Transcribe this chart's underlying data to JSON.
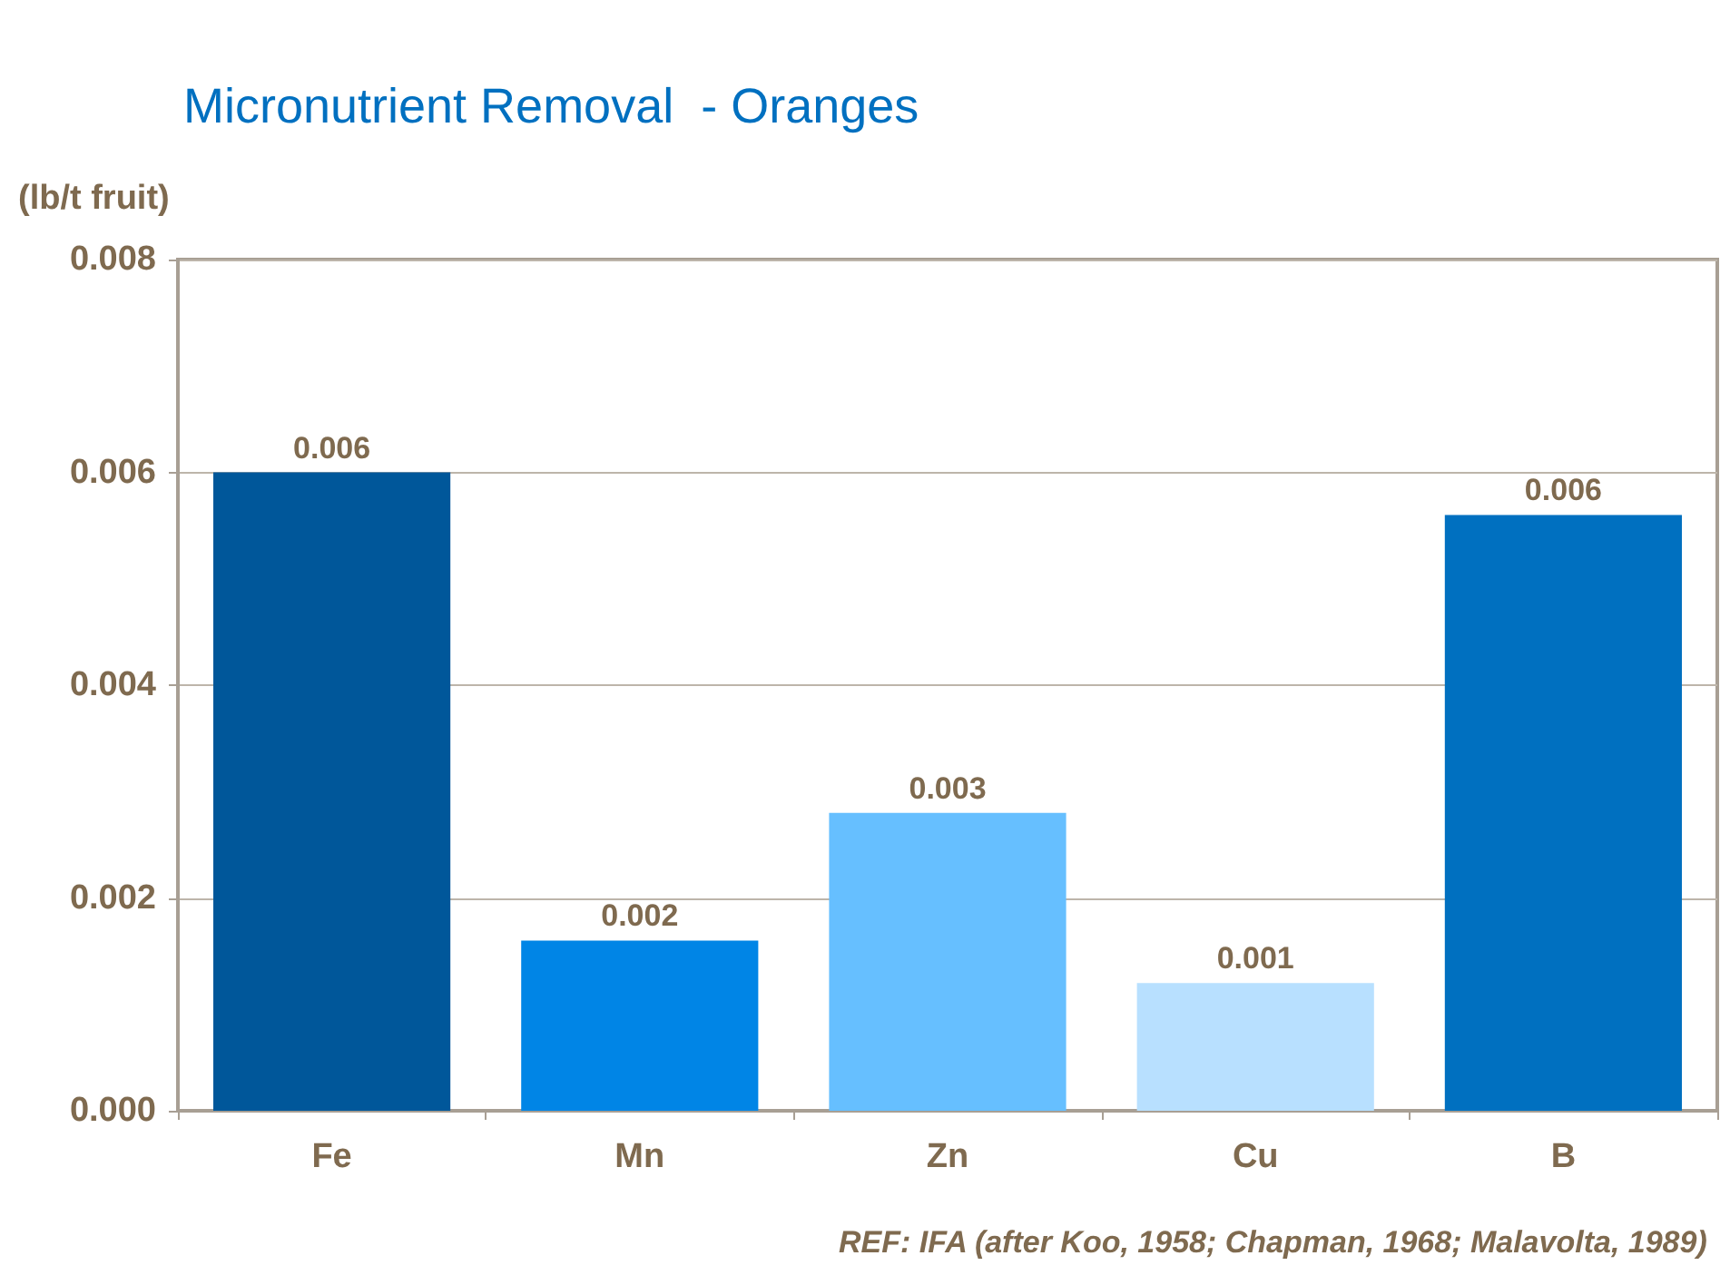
{
  "chart_data": {
    "type": "bar",
    "title": "Micronutrient Removal  - Oranges",
    "ylabel": "(lb/t fruit)",
    "categories": [
      "Fe",
      "Mn",
      "Zn",
      "Cu",
      "B"
    ],
    "values": [
      0.006,
      0.0016,
      0.0028,
      0.0012,
      0.0056
    ],
    "colors": [
      "#00579a",
      "#0085e6",
      "#66bfff",
      "#b8e0ff",
      "#0070c0"
    ],
    "value_labels": [
      "0.006",
      "0.002",
      "0.003",
      "0.001",
      "0.006"
    ],
    "ylim": [
      0,
      0.008
    ],
    "yticks": [
      {
        "value": 0,
        "label": "0.000"
      },
      {
        "value": 0.002,
        "label": "0.002"
      },
      {
        "value": 0.004,
        "label": "0.004"
      },
      {
        "value": 0.006,
        "label": "0.006"
      },
      {
        "value": 0.008,
        "label": "0.008"
      }
    ],
    "grid": "y",
    "annotations": [
      "REF: IFA (after Koo, 1958; Chapman, 1968; Malavolta, 1989)"
    ]
  }
}
